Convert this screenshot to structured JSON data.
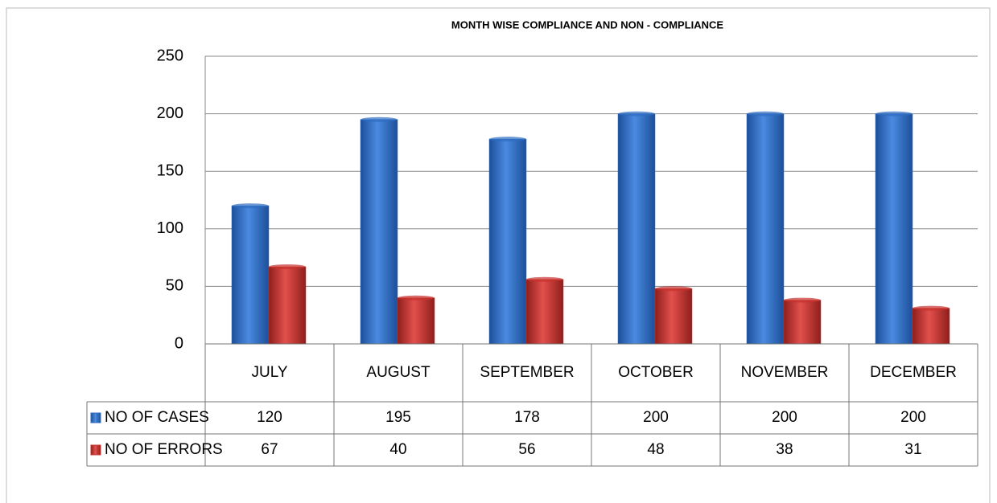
{
  "chart_data": {
    "type": "bar",
    "title": "MONTH WISE COMPLIANCE AND NON - COMPLIANCE",
    "categories": [
      "JULY",
      "AUGUST",
      "SEPTEMBER",
      "OCTOBER",
      "NOVEMBER",
      "DECEMBER"
    ],
    "series": [
      {
        "name": "NO OF CASES",
        "color": "#2e6cc0",
        "values": [
          120,
          195,
          178,
          200,
          200,
          200
        ]
      },
      {
        "name": "NO OF ERRORS",
        "color": "#c8302c",
        "values": [
          67,
          40,
          56,
          48,
          38,
          31
        ]
      }
    ],
    "ylim": [
      0,
      250
    ],
    "yticks": [
      0,
      50,
      100,
      150,
      200,
      250
    ],
    "grid": true
  }
}
